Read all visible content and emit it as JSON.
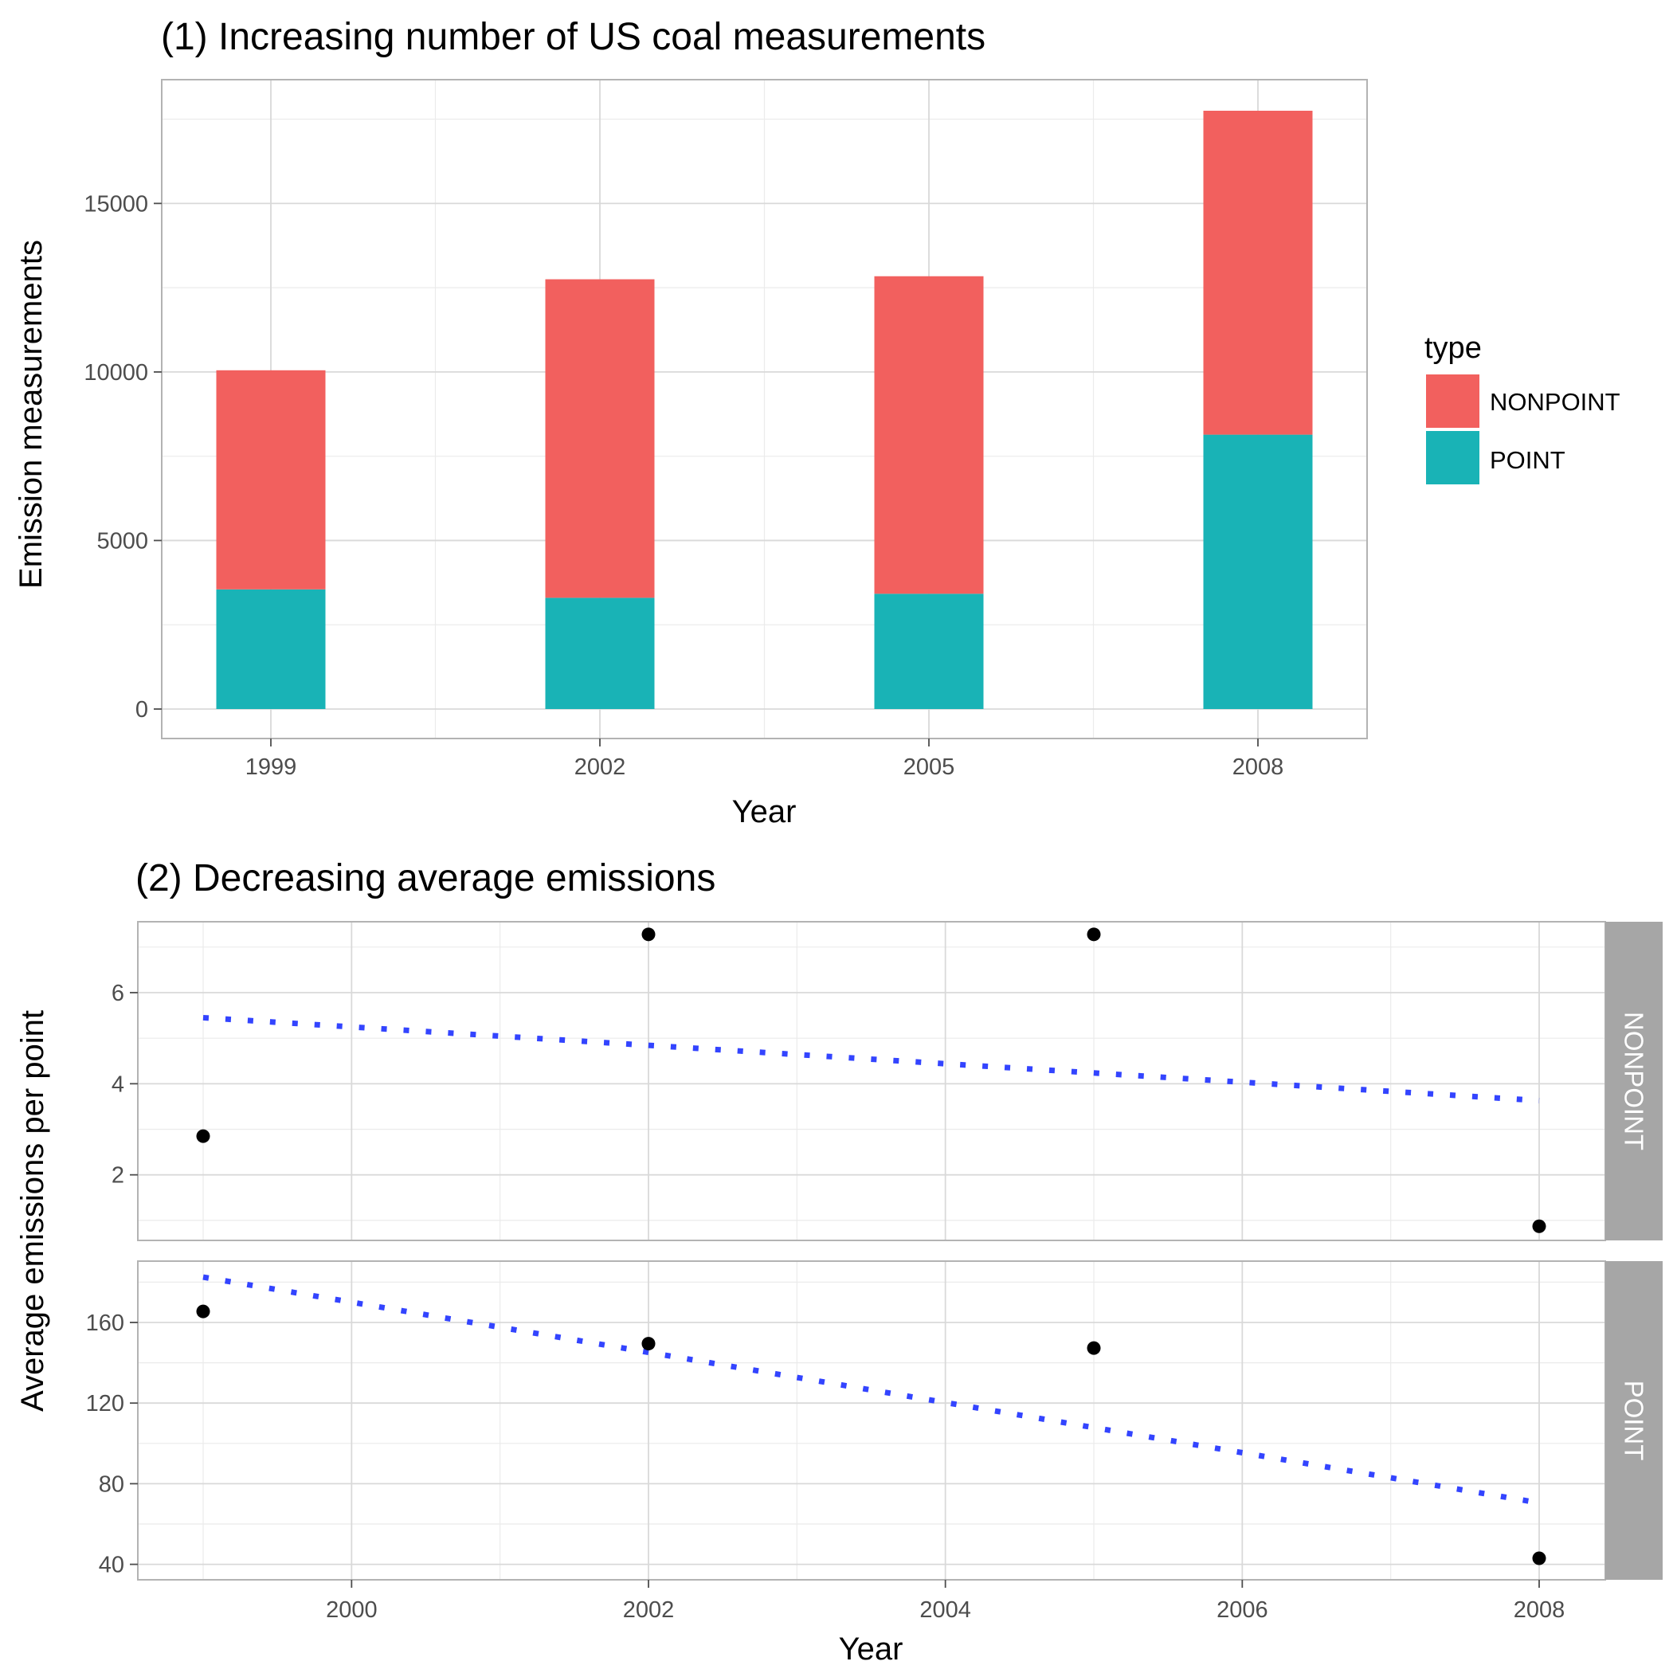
{
  "chart_data": [
    {
      "type": "bar",
      "stacked": true,
      "title": "(1) Increasing number of US coal measurements",
      "xlabel": "Year",
      "ylabel": "Emission measurements",
      "categories": [
        "1999",
        "2002",
        "2005",
        "2008"
      ],
      "series": [
        {
          "name": "POINT",
          "values": [
            3550,
            3300,
            3420,
            8140
          ]
        },
        {
          "name": "NONPOINT",
          "values": [
            6500,
            9450,
            9420,
            9610
          ]
        }
      ],
      "ylim": [
        0,
        17750
      ],
      "yticks": [
        0,
        5000,
        10000,
        15000
      ],
      "grid": true,
      "legend": {
        "title": "type",
        "placement": "right",
        "entries": [
          "NONPOINT",
          "POINT"
        ]
      },
      "colors": {
        "NONPOINT": "#F2605E",
        "POINT": "#19B3B6"
      }
    },
    {
      "type": "scatter",
      "title": "(2) Decreasing average emissions",
      "xlabel": "Year",
      "ylabel": "Average emissions per point",
      "xticks": [
        2000,
        2002,
        2004,
        2006,
        2008
      ],
      "xlim": [
        1998.8,
        2008.45
      ],
      "facets": [
        {
          "label": "NONPOINT",
          "ylim": [
            0.87,
            7.55
          ],
          "yticks": [
            2,
            4,
            6
          ],
          "x": [
            1999,
            2002,
            2005,
            2008
          ],
          "y": [
            2.85,
            7.28,
            7.28,
            0.87
          ],
          "trend": {
            "x": [
              1999,
              2008
            ],
            "y": [
              5.45,
              3.63
            ]
          }
        },
        {
          "label": "POINT",
          "ylim": [
            40,
            188
          ],
          "yticks": [
            40,
            80,
            120,
            160
          ],
          "x": [
            1999,
            2002,
            2005,
            2008
          ],
          "y": [
            165.5,
            149.5,
            147.3,
            43
          ],
          "trend": {
            "x": [
              1999,
              2008
            ],
            "y": [
              182.5,
              70.5
            ]
          }
        }
      ],
      "grid": true,
      "colors": {
        "points": "#000000",
        "trend": "#3344FF",
        "strip": "#A6A6A6"
      }
    }
  ]
}
